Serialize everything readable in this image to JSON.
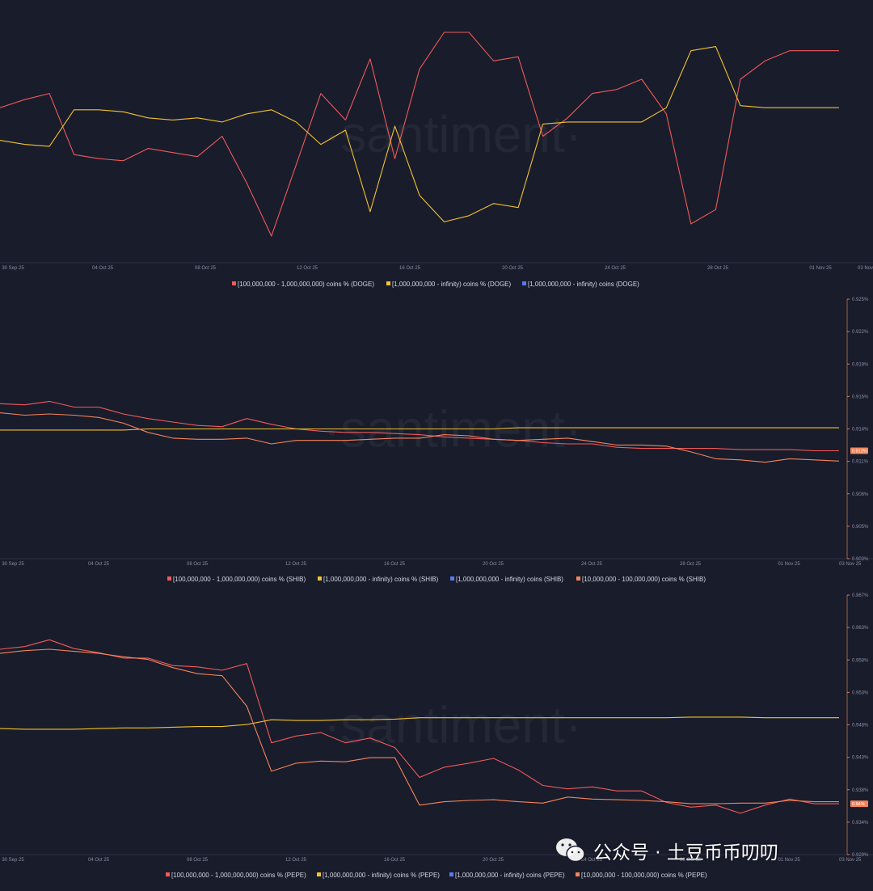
{
  "watermark": "·santiment·",
  "footer": {
    "wechat_text": "公众号 · 土豆币币叨叨"
  },
  "chart_data": [
    {
      "type": "line",
      "asset": "DOGE",
      "title": "",
      "xlabel": "",
      "ylabel": "",
      "x_ticks": [
        "30 Sep 25",
        "04 Oct 25",
        "08 Oct 25",
        "12 Oct 25",
        "16 Oct 25",
        "20 Oct 25",
        "24 Oct 25",
        "28 Oct 25",
        "01 Nov 25",
        "03 Nov"
      ],
      "y_ticks": [],
      "legend_position": "bottom",
      "legend": [
        {
          "label": "[100,000,000 - 1,000,000,000) coins % (DOGE)",
          "color": "#f05a5a"
        },
        {
          "label": "[1,000,000,000 - infinity) coins % (DOGE)",
          "color": "#f2c230"
        },
        {
          "label": "[1,000,000,000 - infinity) coins (DOGE)",
          "color": "#5b78f2"
        }
      ],
      "ylim": [
        0,
        100
      ],
      "series": [
        {
          "name": "[100,000,000 - 1,000,000,000) coins % (DOGE)",
          "color": "#f05a5a",
          "values": [
            63,
            67,
            70,
            40,
            38,
            37,
            43,
            41,
            39,
            49,
            26,
            0,
            35,
            70,
            57,
            87,
            38,
            82,
            100,
            100,
            86,
            88,
            49,
            58,
            70,
            72,
            77,
            60,
            6,
            13,
            77,
            86,
            91,
            91,
            91
          ]
        },
        {
          "name": "[1,000,000,000 - infinity) coins % (DOGE)",
          "color": "#f2c230",
          "values": [
            47,
            45,
            44,
            62,
            62,
            61,
            58,
            57,
            58,
            56,
            60,
            62,
            56,
            45,
            52,
            12,
            54,
            20,
            7,
            10,
            16,
            14,
            55,
            56,
            56,
            56,
            56,
            63,
            91,
            93,
            64,
            63,
            63,
            63,
            63
          ]
        }
      ]
    },
    {
      "type": "line",
      "asset": "SHIB",
      "title": "",
      "xlabel": "",
      "ylabel": "",
      "x_ticks": [
        "30 Sep 25",
        "04 Oct 25",
        "08 Oct 25",
        "12 Oct 25",
        "16 Oct 25",
        "20 Oct 25",
        "24 Oct 25",
        "28 Oct 25",
        "01 Nov 25",
        "03 Nov 25"
      ],
      "y_ticks": [
        "0.925%",
        "0.922%",
        "0.919%",
        "0.916%",
        "0.914%",
        "0.911%",
        "0.908%",
        "0.905%",
        "0.903%"
      ],
      "value_label": "0.912%",
      "legend_position": "bottom",
      "legend": [
        {
          "label": "[100,000,000 - 1,000,000,000) coins % (SHIB)",
          "color": "#f05a5a"
        },
        {
          "label": "[1,000,000,000 - infinity) coins % (SHIB)",
          "color": "#f2c230"
        },
        {
          "label": "[1,000,000,000 - infinity) coins (SHIB)",
          "color": "#5b78f2"
        },
        {
          "label": "[10,000,000 - 100,000,000) coins % (SHIB)",
          "color": "#f5845a"
        }
      ],
      "ylim": [
        0.9026,
        0.9252
      ],
      "series": [
        {
          "name": "[100,000,000 - 1,000,000,000) coins % (SHIB)",
          "color": "#f05a5a",
          "values": [
            0.9161,
            0.916,
            0.9163,
            0.9158,
            0.9158,
            0.9152,
            0.9148,
            0.9145,
            0.9142,
            0.9141,
            0.9148,
            0.9143,
            0.9139,
            0.9137,
            0.9136,
            0.9136,
            0.9135,
            0.9134,
            0.9132,
            0.9131,
            0.913,
            0.9129,
            0.9127,
            0.9126,
            0.9126,
            0.9123,
            0.9122,
            0.9122,
            0.9122,
            0.9122,
            0.9121,
            0.9121,
            0.9121,
            0.912,
            0.912
          ]
        },
        {
          "name": "[1,000,000,000 - infinity) coins % (SHIB)",
          "color": "#f2c230",
          "values": [
            0.9138,
            0.9138,
            0.9138,
            0.9138,
            0.9138,
            0.9138,
            0.9139,
            0.9139,
            0.9139,
            0.9139,
            0.9139,
            0.9139,
            0.9139,
            0.9139,
            0.9139,
            0.9139,
            0.9139,
            0.9139,
            0.9139,
            0.9139,
            0.9139,
            0.914,
            0.914,
            0.914,
            0.914,
            0.914,
            0.914,
            0.914,
            0.914,
            0.914,
            0.914,
            0.914,
            0.914,
            0.914,
            0.914
          ]
        },
        {
          "name": "[10,000,000 - 100,000,000) coins % (SHIB)",
          "color": "#f5845a",
          "values": [
            0.9153,
            0.9151,
            0.9152,
            0.9151,
            0.9149,
            0.9144,
            0.9136,
            0.9131,
            0.913,
            0.913,
            0.9131,
            0.9126,
            0.9129,
            0.9129,
            0.9129,
            0.913,
            0.9131,
            0.9131,
            0.9134,
            0.9133,
            0.913,
            0.9129,
            0.913,
            0.9131,
            0.9128,
            0.9125,
            0.9125,
            0.9124,
            0.9119,
            0.9113,
            0.9112,
            0.911,
            0.9113,
            0.9112,
            0.9111
          ]
        }
      ]
    },
    {
      "type": "line",
      "asset": "PEPE",
      "title": "",
      "xlabel": "",
      "ylabel": "",
      "x_ticks": [
        "30 Sep 25",
        "04 Oct 25",
        "08 Oct 25",
        "12 Oct 25",
        "16 Oct 25",
        "20 Oct 25",
        "24 Oct 25",
        "28 Oct 25",
        "01 Nov 25",
        "03 Nov 25"
      ],
      "y_ticks": [
        "0.967%",
        "0.963%",
        "0.958%",
        "0.953%",
        "0.948%",
        "0.943%",
        "0.938%",
        "0.934%",
        "0.929%"
      ],
      "value_label": "0.94%",
      "legend_position": "bottom",
      "legend": [
        {
          "label": "[100,000,000 - 1,000,000,000) coins % (PEPE)",
          "color": "#f05a5a"
        },
        {
          "label": "[1,000,000,000 - infinity) coins % (PEPE)",
          "color": "#f2c230"
        },
        {
          "label": "[1,000,000,000 - infinity) coins (PEPE)",
          "color": "#5b78f2"
        },
        {
          "label": "[10,000,000 - 100,000,000) coins % (PEPE)",
          "color": "#f5845a"
        }
      ],
      "ylim": [
        0.9289,
        0.9672
      ],
      "series": [
        {
          "name": "[100,000,000 - 1,000,000,000) coins % (PEPE)",
          "color": "#f05a5a",
          "values": [
            0.9592,
            0.9596,
            0.9606,
            0.9593,
            0.9587,
            0.9579,
            0.9579,
            0.9568,
            0.9566,
            0.9561,
            0.9571,
            0.9454,
            0.9464,
            0.9469,
            0.9454,
            0.9461,
            0.9447,
            0.9403,
            0.9418,
            0.9424,
            0.9431,
            0.9414,
            0.9391,
            0.9386,
            0.9389,
            0.9383,
            0.9383,
            0.9366,
            0.9359,
            0.9362,
            0.935,
            0.9362,
            0.9371,
            0.9364,
            0.9364
          ]
        },
        {
          "name": "[1,000,000,000 - infinity) coins % (PEPE)",
          "color": "#f2c230",
          "values": [
            0.9475,
            0.9474,
            0.9474,
            0.9474,
            0.9475,
            0.9476,
            0.9476,
            0.9477,
            0.9478,
            0.9478,
            0.9481,
            0.9488,
            0.9487,
            0.9487,
            0.9488,
            0.9488,
            0.9489,
            0.9491,
            0.9491,
            0.9491,
            0.9491,
            0.9491,
            0.9491,
            0.9491,
            0.9491,
            0.9491,
            0.9491,
            0.9491,
            0.9492,
            0.9492,
            0.9492,
            0.9491,
            0.9491,
            0.9491,
            0.9491
          ]
        },
        {
          "name": "[10,000,000 - 100,000,000) coins % (PEPE)",
          "color": "#f5845a",
          "values": [
            0.9586,
            0.959,
            0.9592,
            0.9589,
            0.9586,
            0.9581,
            0.9577,
            0.9565,
            0.9556,
            0.9553,
            0.9508,
            0.9412,
            0.9424,
            0.9427,
            0.9426,
            0.9432,
            0.9432,
            0.9362,
            0.9367,
            0.9369,
            0.937,
            0.9367,
            0.9365,
            0.9374,
            0.9371,
            0.937,
            0.9369,
            0.9367,
            0.9364,
            0.9364,
            0.9365,
            0.9365,
            0.9369,
            0.9367,
            0.9367
          ]
        }
      ]
    }
  ]
}
